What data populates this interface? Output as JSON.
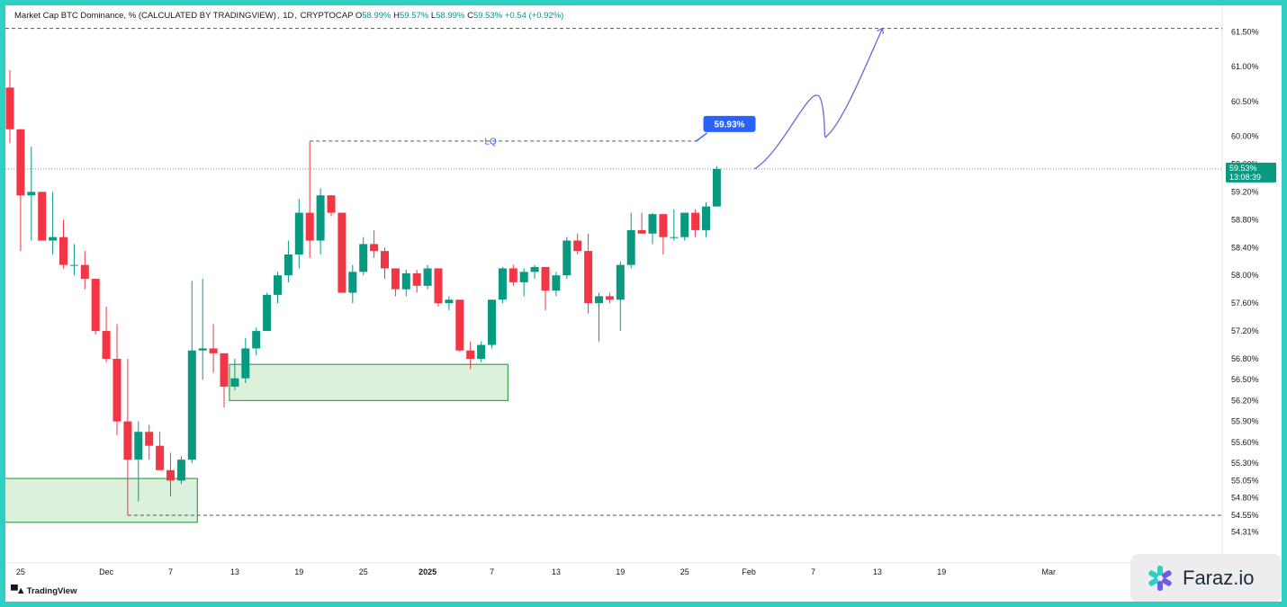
{
  "legend": {
    "title": "Market Cap BTC Dominance, %",
    "source_note": "(CALCULATED BY TRADINGVIEW)",
    "interval": "1D",
    "exchange": "CRYPTOCAP",
    "o_label": "O",
    "o_value": "58.99%",
    "h_label": "H",
    "h_value": "59.57%",
    "l_label": "L",
    "l_value": "58.99%",
    "c_label": "C",
    "c_value": "59.53%",
    "change": "+0.54 (+0.92%)"
  },
  "branding": {
    "tradingview": "TradingView",
    "watermark": "Faraz.io",
    "watermark_icon": "asterisk-icon"
  },
  "colors": {
    "up": "#089981",
    "down": "#f23645",
    "zone_fill": "#dcf1dc",
    "zone_stroke": "#3fa14a",
    "projection": "#7b61d9",
    "label_bg": "#2962ff",
    "accent_bg": "#2fd0c4"
  },
  "chart_data": {
    "type": "candlestick",
    "title": "Market Cap BTC Dominance, %",
    "y_unit": "%",
    "ylim": [
      54.15,
      61.7
    ],
    "y_ticks": [
      "61.50%",
      "61.00%",
      "60.50%",
      "60.00%",
      "59.60%",
      "59.20%",
      "58.80%",
      "58.40%",
      "58.00%",
      "57.60%",
      "57.20%",
      "56.80%",
      "56.50%",
      "56.20%",
      "55.90%",
      "55.60%",
      "55.30%",
      "55.05%",
      "54.80%",
      "54.55%",
      "54.31%"
    ],
    "x_ticks": [
      "25",
      "Dec",
      "7",
      "13",
      "19",
      "25",
      "2025",
      "7",
      "13",
      "19",
      "25",
      "Feb",
      "7",
      "13",
      "19",
      "Mar"
    ],
    "last_price_label": "59.53%",
    "countdown": "13:08:39",
    "lq_label": "LQ",
    "target_label": "59.93%",
    "candles": [
      {
        "o": 60.7,
        "h": 60.95,
        "l": 59.9,
        "c": 60.1
      },
      {
        "o": 60.1,
        "h": 60.1,
        "l": 58.35,
        "c": 59.15
      },
      {
        "o": 59.15,
        "h": 59.85,
        "l": 58.5,
        "c": 59.2
      },
      {
        "o": 59.2,
        "h": 59.2,
        "l": 58.5,
        "c": 58.5
      },
      {
        "o": 58.5,
        "h": 59.2,
        "l": 58.3,
        "c": 58.55
      },
      {
        "o": 58.55,
        "h": 58.8,
        "l": 58.1,
        "c": 58.15
      },
      {
        "o": 58.15,
        "h": 58.45,
        "l": 58.0,
        "c": 58.15
      },
      {
        "o": 58.15,
        "h": 58.35,
        "l": 57.8,
        "c": 57.95
      },
      {
        "o": 57.95,
        "h": 57.95,
        "l": 57.15,
        "c": 57.2
      },
      {
        "o": 57.2,
        "h": 57.55,
        "l": 56.75,
        "c": 56.8
      },
      {
        "o": 56.8,
        "h": 57.3,
        "l": 55.7,
        "c": 55.9
      },
      {
        "o": 55.9,
        "h": 56.8,
        "l": 54.55,
        "c": 55.35
      },
      {
        "o": 55.35,
        "h": 55.9,
        "l": 54.75,
        "c": 55.75
      },
      {
        "o": 55.75,
        "h": 55.85,
        "l": 55.35,
        "c": 55.55
      },
      {
        "o": 55.55,
        "h": 55.75,
        "l": 55.2,
        "c": 55.2
      },
      {
        "o": 55.2,
        "h": 55.45,
        "l": 54.82,
        "c": 55.05
      },
      {
        "o": 55.05,
        "h": 55.4,
        "l": 55.0,
        "c": 55.35
      },
      {
        "o": 55.35,
        "h": 57.92,
        "l": 55.3,
        "c": 56.92
      },
      {
        "o": 56.92,
        "h": 57.95,
        "l": 56.5,
        "c": 56.95
      },
      {
        "o": 56.95,
        "h": 57.3,
        "l": 56.6,
        "c": 56.88
      },
      {
        "o": 56.88,
        "h": 56.88,
        "l": 56.1,
        "c": 56.4
      },
      {
        "o": 56.4,
        "h": 56.8,
        "l": 56.35,
        "c": 56.52
      },
      {
        "o": 56.52,
        "h": 57.1,
        "l": 56.45,
        "c": 56.95
      },
      {
        "o": 56.95,
        "h": 57.25,
        "l": 56.85,
        "c": 57.2
      },
      {
        "o": 57.2,
        "h": 57.75,
        "l": 57.2,
        "c": 57.72
      },
      {
        "o": 57.72,
        "h": 58.05,
        "l": 57.6,
        "c": 58.0
      },
      {
        "o": 58.0,
        "h": 58.5,
        "l": 57.9,
        "c": 58.3
      },
      {
        "o": 58.3,
        "h": 59.1,
        "l": 58.1,
        "c": 58.9
      },
      {
        "o": 58.9,
        "h": 59.93,
        "l": 58.25,
        "c": 58.5
      },
      {
        "o": 58.5,
        "h": 59.25,
        "l": 58.3,
        "c": 59.15
      },
      {
        "o": 59.15,
        "h": 59.15,
        "l": 58.85,
        "c": 58.9
      },
      {
        "o": 58.9,
        "h": 58.9,
        "l": 57.75,
        "c": 57.75
      },
      {
        "o": 57.75,
        "h": 58.15,
        "l": 57.6,
        "c": 58.05
      },
      {
        "o": 58.05,
        "h": 58.55,
        "l": 58.0,
        "c": 58.45
      },
      {
        "o": 58.45,
        "h": 58.65,
        "l": 58.25,
        "c": 58.35
      },
      {
        "o": 58.35,
        "h": 58.4,
        "l": 57.95,
        "c": 58.1
      },
      {
        "o": 58.1,
        "h": 58.1,
        "l": 57.7,
        "c": 57.8
      },
      {
        "o": 57.8,
        "h": 58.08,
        "l": 57.7,
        "c": 58.03
      },
      {
        "o": 58.03,
        "h": 58.08,
        "l": 57.75,
        "c": 57.85
      },
      {
        "o": 57.85,
        "h": 58.15,
        "l": 57.8,
        "c": 58.1
      },
      {
        "o": 58.1,
        "h": 58.1,
        "l": 57.55,
        "c": 57.6
      },
      {
        "o": 57.6,
        "h": 57.7,
        "l": 57.5,
        "c": 57.65
      },
      {
        "o": 57.65,
        "h": 57.65,
        "l": 56.9,
        "c": 56.92
      },
      {
        "o": 56.92,
        "h": 57.05,
        "l": 56.65,
        "c": 56.8
      },
      {
        "o": 56.8,
        "h": 57.05,
        "l": 56.75,
        "c": 57.0
      },
      {
        "o": 57.0,
        "h": 57.65,
        "l": 56.95,
        "c": 57.65
      },
      {
        "o": 57.65,
        "h": 58.12,
        "l": 57.6,
        "c": 58.1
      },
      {
        "o": 58.1,
        "h": 58.15,
        "l": 57.85,
        "c": 57.9
      },
      {
        "o": 57.9,
        "h": 58.1,
        "l": 57.7,
        "c": 58.05
      },
      {
        "o": 58.05,
        "h": 58.15,
        "l": 57.95,
        "c": 58.12
      },
      {
        "o": 58.12,
        "h": 58.12,
        "l": 57.5,
        "c": 57.78
      },
      {
        "o": 57.78,
        "h": 58.05,
        "l": 57.7,
        "c": 58.0
      },
      {
        "o": 58.0,
        "h": 58.55,
        "l": 57.95,
        "c": 58.5
      },
      {
        "o": 58.5,
        "h": 58.6,
        "l": 58.3,
        "c": 58.35
      },
      {
        "o": 58.35,
        "h": 58.6,
        "l": 57.45,
        "c": 57.6
      },
      {
        "o": 57.6,
        "h": 57.75,
        "l": 57.05,
        "c": 57.7
      },
      {
        "o": 57.7,
        "h": 57.75,
        "l": 57.6,
        "c": 57.65
      },
      {
        "o": 57.65,
        "h": 58.2,
        "l": 57.2,
        "c": 58.15
      },
      {
        "o": 58.15,
        "h": 58.9,
        "l": 58.1,
        "c": 58.65
      },
      {
        "o": 58.65,
        "h": 58.9,
        "l": 58.6,
        "c": 58.6
      },
      {
        "o": 58.6,
        "h": 58.9,
        "l": 58.45,
        "c": 58.88
      },
      {
        "o": 58.88,
        "h": 58.88,
        "l": 58.3,
        "c": 58.55
      },
      {
        "o": 58.55,
        "h": 58.95,
        "l": 58.5,
        "c": 58.55
      },
      {
        "o": 58.55,
        "h": 58.9,
        "l": 58.5,
        "c": 58.9
      },
      {
        "o": 58.9,
        "h": 58.95,
        "l": 58.55,
        "c": 58.65
      },
      {
        "o": 58.65,
        "h": 59.05,
        "l": 58.55,
        "c": 58.99
      },
      {
        "o": 58.99,
        "h": 59.57,
        "l": 58.99,
        "c": 59.53
      }
    ],
    "zones": [
      {
        "start_index": 0,
        "end_index": 17,
        "top": 55.08,
        "bottom": 54.45
      },
      {
        "start_index": 21,
        "end_index": 46,
        "top": 56.72,
        "bottom": 56.2
      }
    ],
    "lq_level": 59.93,
    "lower_level": 54.55,
    "upper_level": 61.55
  }
}
